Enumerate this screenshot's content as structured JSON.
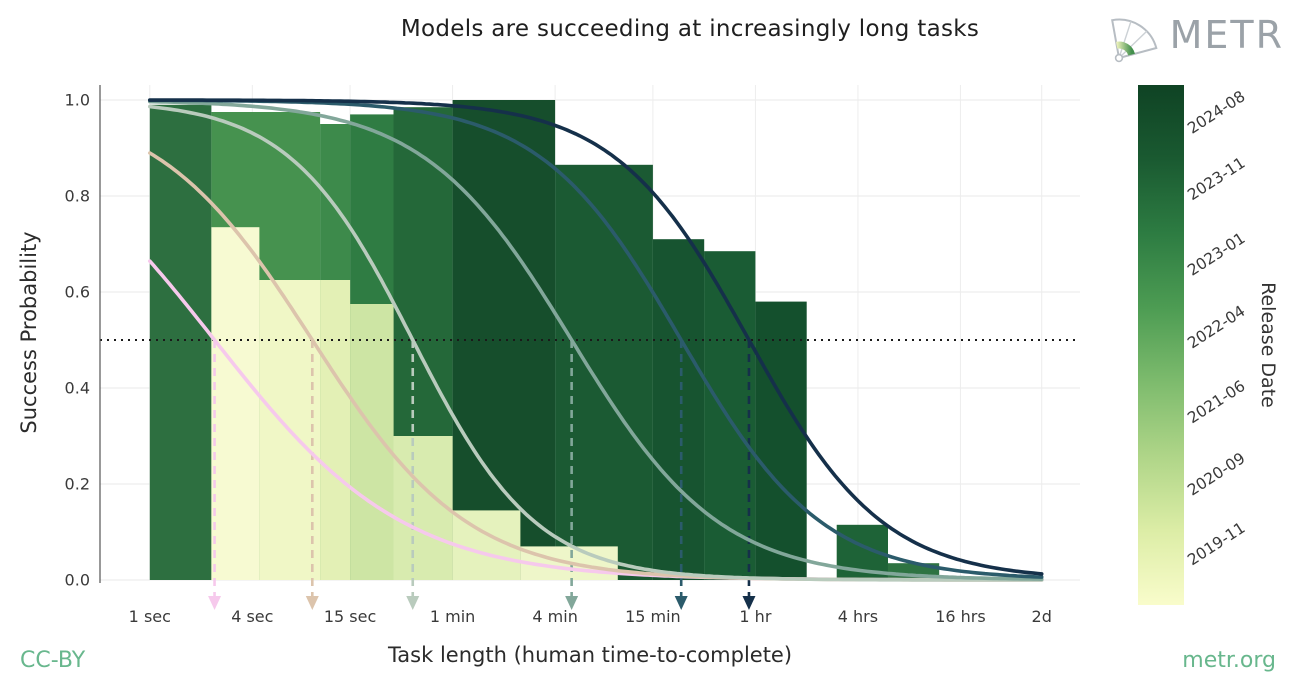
{
  "header": {
    "brand": "METR"
  },
  "footer": {
    "license": "CC-BY",
    "site": "metr.org"
  },
  "chart_data": {
    "type": "line",
    "title": "Models are succeeding at increasingly long tasks",
    "xlabel": "Task length (human time-to-complete)",
    "ylabel": "Success Probability",
    "x_scale": "log",
    "x_domain_seconds": [
      0.51,
      290000
    ],
    "curve_x_range_seconds": [
      1,
      172800
    ],
    "ylim": [
      0,
      1.03
    ],
    "grid": true,
    "hline": {
      "y": 0.5,
      "style": "dotted",
      "color": "#1a1a1a"
    },
    "x_ticks": [
      {
        "label": "1 sec",
        "seconds": 1
      },
      {
        "label": "4 sec",
        "seconds": 4
      },
      {
        "label": "15 sec",
        "seconds": 15
      },
      {
        "label": "1 min",
        "seconds": 60
      },
      {
        "label": "4 min",
        "seconds": 240
      },
      {
        "label": "15 min",
        "seconds": 900
      },
      {
        "label": "1 hr",
        "seconds": 3600
      },
      {
        "label": "4 hrs",
        "seconds": 14400
      },
      {
        "label": "16 hrs",
        "seconds": 57600
      },
      {
        "label": "2d",
        "seconds": 172800
      }
    ],
    "y_ticks": [
      {
        "label": "0.0",
        "value": 0.0
      },
      {
        "label": "0.2",
        "value": 0.2
      },
      {
        "label": "0.4",
        "value": 0.4
      },
      {
        "label": "0.6",
        "value": 0.6
      },
      {
        "label": "0.8",
        "value": 0.8
      },
      {
        "label": "1.0",
        "value": 1.0
      }
    ],
    "curves": [
      {
        "id": "curve-1",
        "color": "#f6c9ec",
        "h_seconds": 2.4,
        "slope": 0.78,
        "success_at_1s": 0.66
      },
      {
        "id": "curve-2",
        "color": "#dcc4ac",
        "h_seconds": 9,
        "slope": 0.95,
        "success_at_1s": 0.89
      },
      {
        "id": "curve-3",
        "color": "#b9cbbd",
        "h_seconds": 35,
        "slope": 1.2,
        "success_at_1s": 0.99
      },
      {
        "id": "curve-4",
        "color": "#82a79a",
        "h_seconds": 300,
        "slope": 1.0,
        "success_at_1s": 1.0
      },
      {
        "id": "curve-5",
        "color": "#2b5b6b",
        "h_seconds": 1320,
        "slope": 1.05,
        "success_at_1s": 1.0
      },
      {
        "id": "curve-6",
        "color": "#15304a",
        "h_seconds": 3300,
        "slope": 1.1,
        "success_at_1s": 1.0
      }
    ],
    "bars": [
      {
        "x0": 1.0,
        "x1": 2.3,
        "top": 0.99,
        "color": "#2d6f40"
      },
      {
        "x0": 2.3,
        "x1": 10,
        "top": 0.975,
        "color": "#46924f"
      },
      {
        "x0": 10,
        "x1": 15,
        "top": 0.95,
        "color": "#3d8a4b"
      },
      {
        "x0": 15,
        "x1": 27,
        "top": 0.97,
        "color": "#2f7c43"
      },
      {
        "x0": 27,
        "x1": 60,
        "top": 0.985,
        "color": "#246839"
      },
      {
        "x0": 60,
        "x1": 240,
        "top": 1.0,
        "color": "#164e2c"
      },
      {
        "x0": 240,
        "x1": 900,
        "top": 0.865,
        "color": "#1b5a33"
      },
      {
        "x0": 900,
        "x1": 1800,
        "top": 0.71,
        "color": "#175430"
      },
      {
        "x0": 1800,
        "x1": 3600,
        "top": 0.685,
        "color": "#1a5c34"
      },
      {
        "x0": 3600,
        "x1": 7200,
        "top": 0.58,
        "color": "#14502d"
      },
      {
        "x0": 10800,
        "x1": 21600,
        "top": 0.115,
        "color": "#1e6337"
      },
      {
        "x0": 21600,
        "x1": 43200,
        "top": 0.035,
        "color": "#2e7342"
      },
      {
        "x0": 2.3,
        "x1": 4.4,
        "top": 0.735,
        "color": "#f7fad2"
      },
      {
        "x0": 4.4,
        "x1": 10,
        "top": 0.625,
        "color": "#f0f7c6"
      },
      {
        "x0": 10,
        "x1": 15,
        "top": 0.625,
        "color": "#e3f0b5"
      },
      {
        "x0": 15,
        "x1": 27,
        "top": 0.575,
        "color": "#cde5a4"
      },
      {
        "x0": 27,
        "x1": 60,
        "top": 0.3,
        "color": "#d8ebaf"
      },
      {
        "x0": 60,
        "x1": 150,
        "top": 0.145,
        "color": "#e5f2bd"
      },
      {
        "x0": 150,
        "x1": 560,
        "top": 0.07,
        "color": "#eef6c9"
      }
    ],
    "colorbar": {
      "label": "Release Date",
      "ticks": [
        "2024-08",
        "2023-11",
        "2023-01",
        "2022-04",
        "2021-06",
        "2020-09",
        "2019-11"
      ],
      "tick_positions": [
        0.087,
        0.215,
        0.36,
        0.5,
        0.644,
        0.783,
        0.917
      ],
      "gradient_top_to_bottom": [
        "#0f4324",
        "#1a5a31",
        "#2d7c42",
        "#4d9c53",
        "#7dbb6d",
        "#afd588",
        "#dceda6",
        "#f9fccb"
      ]
    }
  }
}
